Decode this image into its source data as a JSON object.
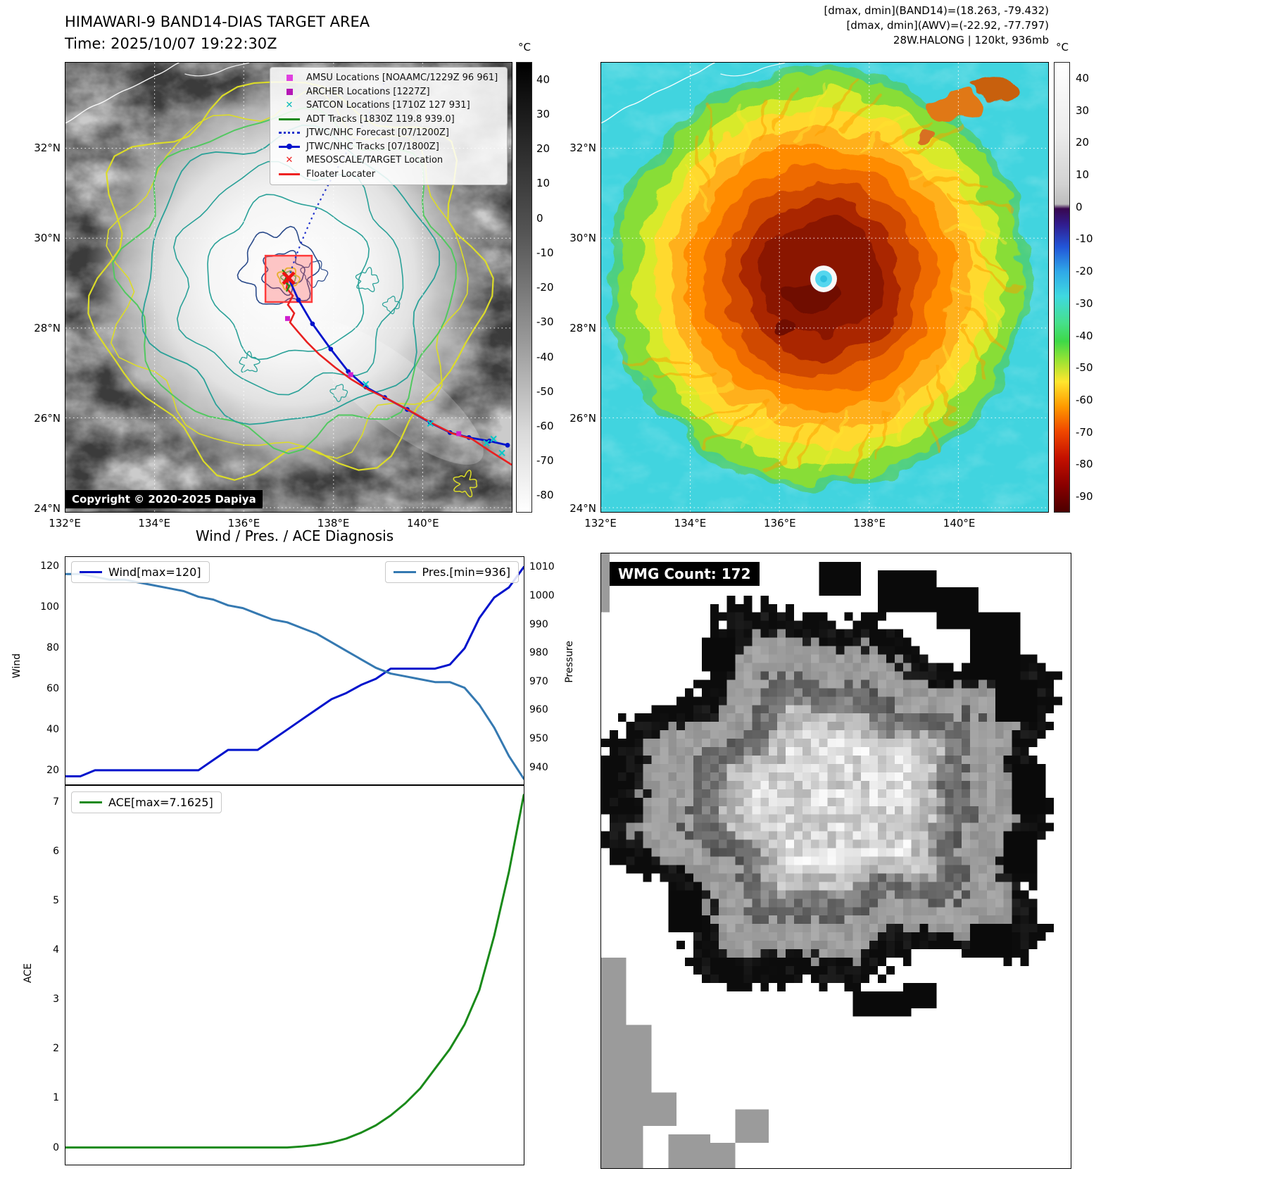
{
  "panel_tl": {
    "title_line1": "HIMAWARI-9 BAND14-DIAS TARGET AREA",
    "title_line2": "Time: 2025/10/07 19:22:30Z",
    "copyright": "Copyright © 2020-2025 Dapiya",
    "legend": [
      {
        "marker": "square-magenta",
        "color": "#e040e0",
        "label": "AMSU Locations [NOAAMC/1229Z 96 961]"
      },
      {
        "marker": "square-purple",
        "color": "#b516b5",
        "label": "ARCHER Locations [1227Z]"
      },
      {
        "marker": "x-cyan",
        "color": "#00b8b8",
        "label": "SATCON Locations [1710Z 127 931]"
      },
      {
        "marker": "line-green",
        "color": "#1a8a1a",
        "label": "ADT Tracks [1830Z 119.8 939.0]"
      },
      {
        "marker": "dotted-blue",
        "color": "#2233cc",
        "label": "JTWC/NHC Forecast [07/1200Z]"
      },
      {
        "marker": "line-dot-blue",
        "color": "#0013cc",
        "label": "JTWC/NHC Tracks [07/1800Z]"
      },
      {
        "marker": "x-red",
        "color": "#ee2222",
        "label": "MESOSCALE/TARGET Location"
      },
      {
        "marker": "line-red",
        "color": "#ee2222",
        "label": "Floater Locater"
      }
    ],
    "lat_ticks": [
      "32°N",
      "30°N",
      "28°N",
      "26°N",
      "24°N"
    ],
    "lon_ticks": [
      "132°E",
      "134°E",
      "136°E",
      "138°E",
      "140°E"
    ],
    "colorbar": {
      "unit": "°C",
      "ticks": [
        40,
        30,
        20,
        10,
        0,
        -10,
        -20,
        -30,
        -40,
        -50,
        -60,
        -70,
        -80
      ]
    }
  },
  "panel_tr": {
    "info_line1": "[dmax, dmin](BAND14)=(18.263, -79.432)",
    "info_line2": "[dmax, dmin](AWV)=(-22.92, -77.797)",
    "info_line3": "28W.HALONG | 120kt, 936mb",
    "lat_ticks": [
      "32°N",
      "30°N",
      "28°N",
      "26°N",
      "24°N"
    ],
    "lon_ticks": [
      "132°E",
      "134°E",
      "136°E",
      "138°E",
      "140°E"
    ],
    "colorbar": {
      "unit": "°C",
      "ticks": [
        40,
        30,
        20,
        10,
        0,
        -10,
        -20,
        -30,
        -40,
        -50,
        -60,
        -70,
        -80,
        -90
      ]
    }
  },
  "charts": {
    "title": "Wind / Pres. / ACE Diagnosis",
    "wind_legend": "Wind[max=120]",
    "pres_legend": "Pres.[min=936]",
    "ace_legend": "ACE[max=7.1625]",
    "wind_axis_label": "Wind",
    "pres_axis_label": "Pressure",
    "ace_axis_label": "ACE"
  },
  "chart_data": [
    {
      "type": "line",
      "title": "Wind / Pres. / ACE Diagnosis",
      "x_axis": {
        "label": "",
        "tick_labels": []
      },
      "legend_position": "upper-left and upper-right",
      "series": [
        {
          "name": "Wind[max=120]",
          "color": "#0013cc",
          "axis": "left",
          "values": [
            17,
            17,
            20,
            20,
            20,
            20,
            20,
            20,
            20,
            20,
            25,
            30,
            30,
            30,
            35,
            40,
            45,
            50,
            55,
            58,
            62,
            65,
            70,
            70,
            70,
            70,
            72,
            80,
            95,
            105,
            110,
            120
          ]
        },
        {
          "name": "Pres.[min=936]",
          "color": "#3579b1",
          "axis": "right",
          "values": [
            1008,
            1008,
            1007,
            1006,
            1006,
            1005,
            1004,
            1003,
            1002,
            1000,
            999,
            997,
            996,
            994,
            992,
            991,
            989,
            987,
            984,
            981,
            978,
            975,
            973,
            972,
            971,
            970,
            970,
            968,
            962,
            954,
            944,
            936
          ]
        }
      ],
      "left_axis": {
        "label": "Wind",
        "ticks": [
          20,
          40,
          60,
          80,
          100,
          120
        ],
        "range": [
          13,
          125
        ]
      },
      "right_axis": {
        "label": "Pressure",
        "ticks": [
          940,
          950,
          960,
          970,
          980,
          990,
          1000,
          1010
        ],
        "range": [
          934,
          1014
        ]
      }
    },
    {
      "type": "line",
      "title": "",
      "legend_position": "upper-left",
      "series": [
        {
          "name": "ACE[max=7.1625]",
          "color": "#1a8a1a",
          "axis": "left",
          "values": [
            0,
            0,
            0,
            0,
            0,
            0,
            0,
            0,
            0,
            0,
            0,
            0,
            0,
            0,
            0,
            0,
            0.02,
            0.05,
            0.1,
            0.18,
            0.3,
            0.45,
            0.65,
            0.9,
            1.2,
            1.6,
            2.0,
            2.5,
            3.2,
            4.3,
            5.6,
            7.1625
          ]
        }
      ],
      "left_axis": {
        "label": "ACE",
        "ticks": [
          0,
          1,
          2,
          3,
          4,
          5,
          6,
          7
        ],
        "range": [
          -0.35,
          7.35
        ]
      }
    }
  ],
  "panel_br": {
    "wmg_label": "WMG Count: 172"
  }
}
